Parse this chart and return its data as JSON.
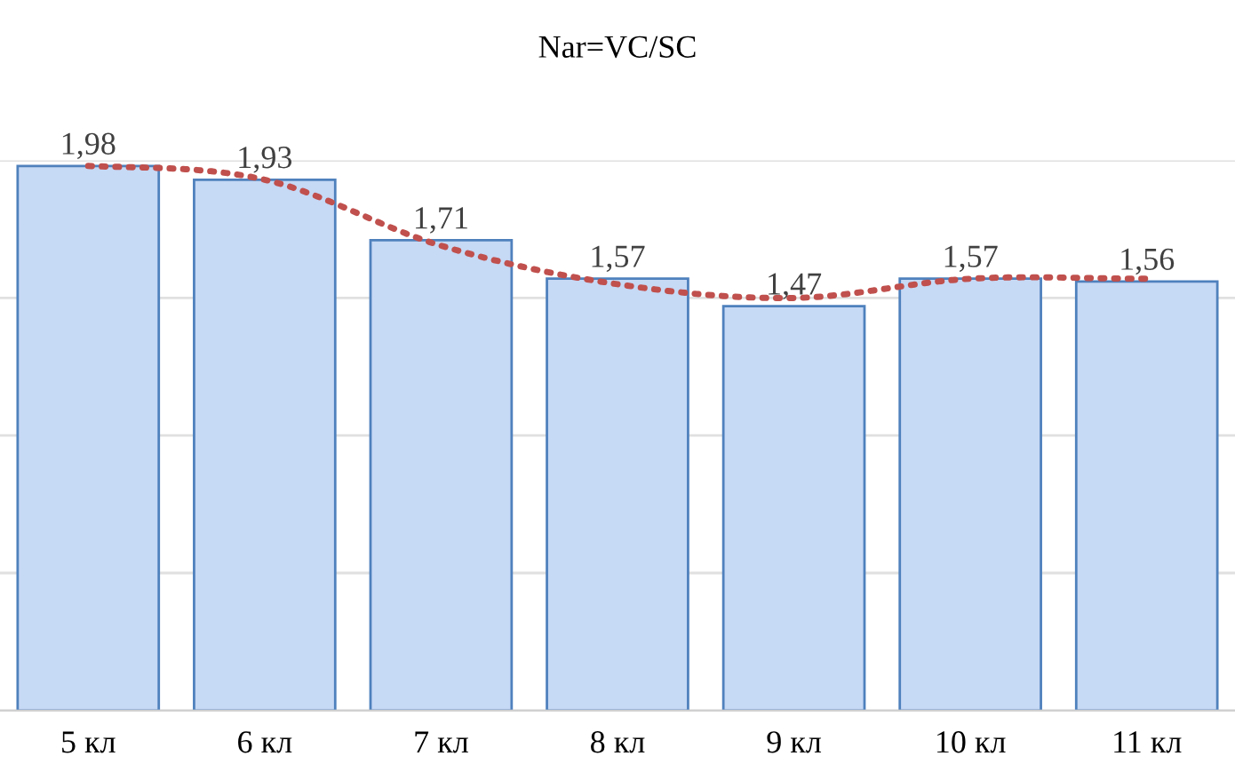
{
  "chart_data": {
    "type": "bar",
    "title": "Nar=VC/SC",
    "categories": [
      "5 кл",
      "6 кл",
      "7 кл",
      "8 кл",
      "9 кл",
      "10 кл",
      "11 кл"
    ],
    "series": [
      {
        "color": "#c6d9f5",
        "values": [
          1.98,
          1.93,
          1.71,
          1.57,
          1.47,
          1.57,
          1.56
        ],
        "value_labels": [
          "1,98",
          "1,93",
          "1,71",
          "1,57",
          "1,47",
          "1,57",
          "1,56"
        ]
      },
      {
        "type": "line",
        "color": "#c0504d",
        "line_style": "dotted",
        "values": [
          1.98,
          1.93,
          1.69,
          1.55,
          1.5,
          1.57,
          1.57
        ]
      }
    ],
    "ylim": [
      0,
      2
    ],
    "yticks": [
      {
        "value": 0,
        "label": null
      },
      {
        "value": 0.5,
        "label": null
      },
      {
        "value": 1,
        "label": null
      },
      {
        "value": 1.5,
        "label": null
      },
      {
        "value": 2,
        "label": null
      }
    ],
    "grid": "y",
    "tick_labels": "x"
  }
}
